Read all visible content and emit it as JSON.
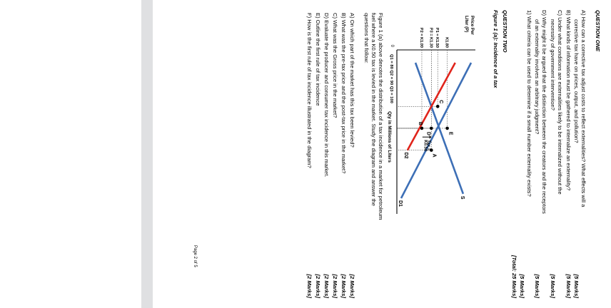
{
  "document": {
    "q1_heading": "QUESTION ONE",
    "q1_items": [
      {
        "lines": [
          "A)  How can a corrective tax adjust costs to reflect externalities? What effects will a",
          "corrective tax have on prices, output, and pollution?"
        ],
        "marks": "[5 Marks]"
      },
      {
        "lines": [
          "B)  What kinds of information must be gathered to internalize an externality?"
        ],
        "marks": "[5 Marks]"
      },
      {
        "lines": [
          "C)  Under what conditions are externalities likely to be internalized without the",
          "necessity of government intervention?"
        ],
        "marks": "[5 Marks]"
      },
      {
        "lines": [
          "D)  Why might it be argued that the distinction between the creators and the receptors",
          "of an externality involves an arbitrary judgment?"
        ],
        "marks": "[5 Marks]"
      },
      {
        "lines": [
          "1)  What criteria can be used to determine if a small number externality exists?"
        ],
        "marks": "[5 Marks]"
      }
    ],
    "total": "[Total: 25 Marks]",
    "q2_heading": "QUESTION TWO",
    "figure_title": "Figure 1 (a): Incidence of a tax",
    "description_lines": [
      "Figure 1 (a) above denotes the distribution of a tax incidence in a market for petroleum",
      "fuel where a K0.50 tax is levied in the market. Study the diagram and answer the",
      "questions that follow:"
    ],
    "q2_items": [
      {
        "text": "A)  On which part of the market has this tax been levied?",
        "marks": "[2 Marks]"
      },
      {
        "text": "B)  What was the pre-tax price and the post-tax price in the market?",
        "marks": "[2 Marks]"
      },
      {
        "text": "C)  What was the Gross price in the market?",
        "marks": "[2 Marks]"
      },
      {
        "text": "D)  Evaluate the producer and consumer tax incidence in this market.",
        "marks": "[2 Marks]"
      },
      {
        "text": "E)  Outline the first rule of tax incidence",
        "marks": "[2 Marks]"
      },
      {
        "text": "F)  How is the first rule of tax incidence illustrated in the diagram?",
        "marks": "[2 Marks]"
      }
    ],
    "page_number": "Page 2 of 5"
  },
  "chart_data": {
    "type": "line",
    "ylabel": "Price Per Liter (P)",
    "xlabel": "Qty in Millions of Liters",
    "origin_label": "0",
    "price_levels": [
      {
        "label": "K1.80",
        "value": 1.8
      },
      {
        "label": "P1 = K1.50",
        "value": 1.5
      },
      {
        "label": "P3 = K1.30",
        "value": 1.3
      },
      {
        "label": "P2 = K1.00",
        "value": 1.0
      }
    ],
    "quantity_label": "Q1 = 80  Q2 = 90  Q3 = 100",
    "quantities": [
      80,
      90,
      100
    ],
    "series": [
      {
        "name": "S",
        "color": "#3d6fb6",
        "points": [
          [
            60,
            0.8
          ],
          [
            120,
            2.3
          ]
        ]
      },
      {
        "name": "D1",
        "color": "#3d6fb6",
        "points": [
          [
            60,
            2.55
          ],
          [
            122,
            0.35
          ]
        ]
      },
      {
        "name": "D2",
        "color": "#e0241b",
        "points": [
          [
            60,
            2.05
          ],
          [
            100,
            0.55
          ]
        ]
      }
    ],
    "points": [
      {
        "label": "A",
        "x": 100,
        "y": 1.3
      },
      {
        "label": "B",
        "x": 90,
        "y": 1.0
      },
      {
        "label": "C",
        "x": 80,
        "y": 1.5
      },
      {
        "label": "D",
        "x": 90,
        "y": 1.3
      },
      {
        "label": "E",
        "x": 90,
        "y": 1.8
      }
    ],
    "tax_label": [
      "Tax =",
      "K0.50"
    ],
    "grid": false
  }
}
